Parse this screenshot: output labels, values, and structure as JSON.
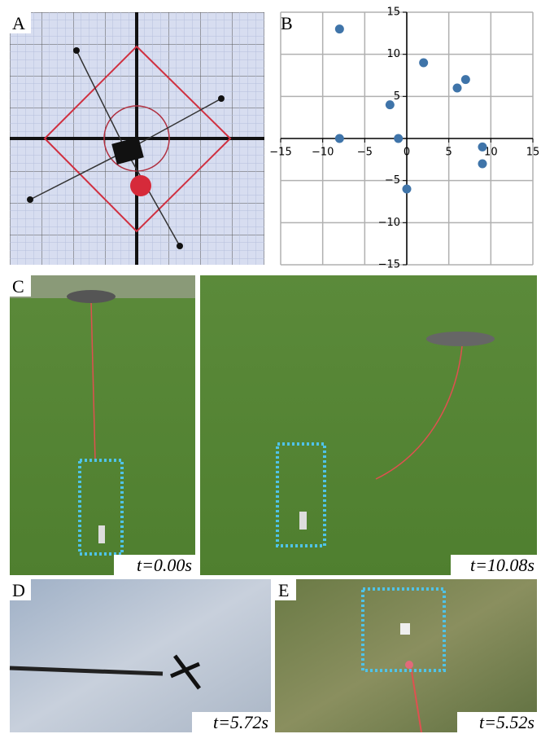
{
  "panels": [
    {
      "label": "A"
    },
    {
      "label": "B"
    },
    {
      "label": "C"
    },
    {
      "label": "D"
    },
    {
      "label": "E"
    }
  ],
  "times": [
    "t=0.00s",
    "t=10.08s",
    "t=5.72s",
    "t=5.52s"
  ],
  "chart_data": {
    "type": "scatter",
    "x": [
      -8,
      -8,
      2,
      -2,
      -1,
      6,
      7,
      9,
      9,
      0
    ],
    "values": [
      13,
      0,
      9,
      4,
      0,
      6,
      7,
      -1,
      -3,
      -6
    ],
    "color": "#3f74a9",
    "xlim": [
      -15,
      15
    ],
    "ylim": [
      -15,
      15
    ],
    "xticks": [
      {
        "value": -15,
        "label": "−15"
      },
      {
        "value": -10,
        "label": "−10"
      },
      {
        "value": -5,
        "label": "−5"
      },
      0,
      5,
      10,
      15
    ],
    "yticks": [
      {
        "value": -15,
        "label": "−15"
      },
      {
        "value": -10,
        "label": "−10"
      },
      {
        "value": -5,
        "label": "−5"
      },
      5,
      10,
      15
    ],
    "grid": true
  }
}
